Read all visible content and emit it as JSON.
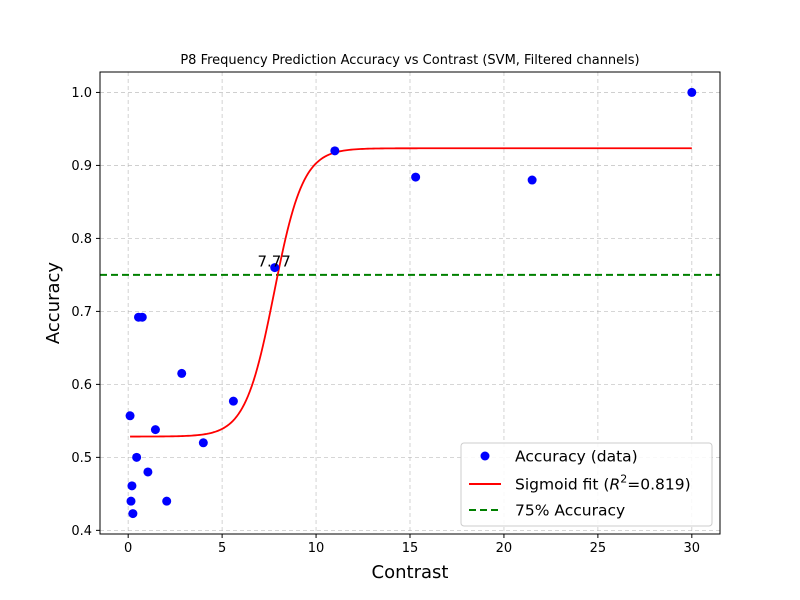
{
  "chart_data": {
    "type": "scatter",
    "title": "P8 Frequency Prediction Accuracy vs Contrast (SVM, Filtered channels)",
    "xlabel": "Contrast",
    "ylabel": "Accuracy",
    "xlim": [
      -1.5,
      31.5
    ],
    "ylim": [
      0.395,
      1.028
    ],
    "xticks": [
      0,
      5,
      10,
      15,
      20,
      25,
      30
    ],
    "yticks": [
      0.4,
      0.5,
      0.6,
      0.7,
      0.8,
      0.9,
      1.0
    ],
    "xtick_labels": [
      "0",
      "5",
      "10",
      "15",
      "20",
      "25",
      "30"
    ],
    "ytick_labels": [
      "0.4",
      "0.5",
      "0.6",
      "0.7",
      "0.8",
      "0.9",
      "1.0"
    ],
    "grid": true,
    "legend_position": "lower-right",
    "series": [
      {
        "name": "Accuracy (data)",
        "kind": "scatter",
        "color": "#0000ff",
        "points": [
          {
            "x": 0.1,
            "y": 0.557
          },
          {
            "x": 0.15,
            "y": 0.44
          },
          {
            "x": 0.2,
            "y": 0.461
          },
          {
            "x": 0.25,
            "y": 0.423
          },
          {
            "x": 0.45,
            "y": 0.5
          },
          {
            "x": 0.55,
            "y": 0.692
          },
          {
            "x": 0.75,
            "y": 0.692
          },
          {
            "x": 1.05,
            "y": 0.48
          },
          {
            "x": 1.45,
            "y": 0.538
          },
          {
            "x": 2.05,
            "y": 0.44
          },
          {
            "x": 2.85,
            "y": 0.615
          },
          {
            "x": 4.0,
            "y": 0.52
          },
          {
            "x": 5.6,
            "y": 0.577
          },
          {
            "x": 7.8,
            "y": 0.76
          },
          {
            "x": 11.0,
            "y": 0.92
          },
          {
            "x": 15.3,
            "y": 0.884
          },
          {
            "x": 21.5,
            "y": 0.88
          },
          {
            "x": 30.0,
            "y": 1.0
          }
        ]
      },
      {
        "name": "Sigmoid fit ($R^2$=0.819)",
        "name_prefix": "Sigmoid fit (",
        "name_var": "R",
        "name_sup": "2",
        "name_suffix": "=0.819)",
        "kind": "line",
        "color": "#ff0000",
        "model": {
          "lower": 0.5285,
          "upper": 0.9235,
          "midpoint": 7.77,
          "slope": 1.3
        },
        "x_range": [
          0.1,
          30.0
        ]
      },
      {
        "name": "75% Accuracy",
        "kind": "hline",
        "color": "#008000",
        "dash": true,
        "y": 0.75
      }
    ],
    "annotations": [
      {
        "text": "7.77",
        "x": 7.77,
        "y": 0.76
      }
    ]
  }
}
